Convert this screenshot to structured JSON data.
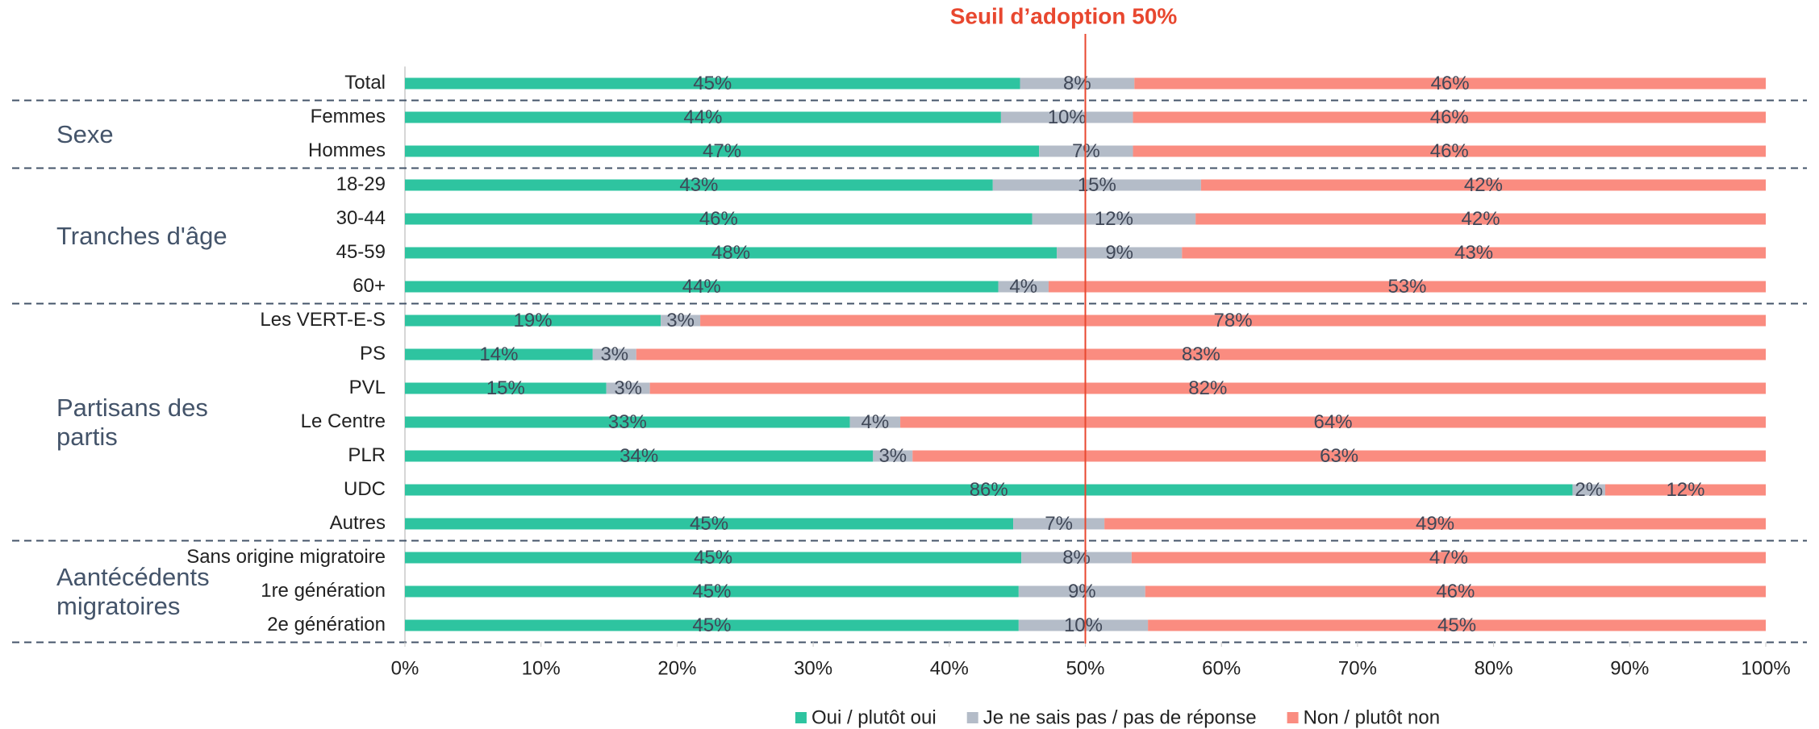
{
  "chart_data": {
    "type": "stacked_bar_horizontal",
    "threshold": {
      "label": "Seuil d’adoption 50%",
      "value": 50,
      "color": "#e8472f"
    },
    "categories": [
      "Total",
      "Femmes",
      "Hommes",
      "18-29",
      "30-44",
      "45-59",
      "60+",
      "Les VERT-E-S",
      "PS",
      "PVL",
      "Le Centre",
      "PLR",
      "UDC",
      "Autres",
      "Sans origine migratoire",
      "1re génération",
      "2e génération"
    ],
    "category_groups": [
      null,
      "Sexe",
      "Sexe",
      "Tranches d'âge",
      "Tranches d'âge",
      "Tranches d'âge",
      "Tranches d'âge",
      "Partisans des partis",
      "Partisans des partis",
      "Partisans des partis",
      "Partisans des partis",
      "Partisans des partis",
      "Partisans des partis",
      "Partisans des partis",
      "Aantécédents migratoires",
      "Aantécédents migratoires",
      "Aantécédents migratoires"
    ],
    "series": [
      {
        "name": "Oui / plutôt oui",
        "color": "#2ec4a0",
        "values": [
          45.2,
          43.8,
          46.6,
          43.2,
          46.1,
          47.9,
          43.6,
          18.8,
          13.8,
          14.8,
          32.7,
          34.4,
          85.8,
          44.7,
          45.3,
          45.1,
          45.1
        ],
        "value_labels": [
          "45%",
          "44%",
          "47%",
          "43%",
          "46%",
          "48%",
          "44%",
          "19%",
          "14%",
          "15%",
          "33%",
          "34%",
          "86%",
          "45%",
          "45%",
          "45%",
          "45%"
        ]
      },
      {
        "name": "Je ne sais pas / pas de réponse",
        "color": "#b4bcc8",
        "values": [
          8.4,
          9.7,
          6.9,
          15.3,
          12.0,
          9.2,
          3.7,
          2.9,
          3.2,
          3.2,
          3.7,
          2.9,
          2.4,
          6.7,
          8.1,
          9.3,
          9.5
        ],
        "value_labels": [
          "8%",
          "10%",
          "7%",
          "15%",
          "12%",
          "9%",
          "4%",
          "3%",
          "3%",
          "3%",
          "4%",
          "3%",
          "2%",
          "7%",
          "8%",
          "9%",
          "10%"
        ]
      },
      {
        "name": "Non / plutôt non",
        "color": "#fa8c80",
        "values": [
          46.4,
          46.5,
          46.5,
          41.5,
          41.9,
          42.9,
          52.7,
          78.3,
          83.0,
          82.0,
          63.6,
          62.7,
          11.8,
          48.6,
          46.6,
          45.6,
          45.4
        ],
        "value_labels": [
          "46%",
          "46%",
          "46%",
          "42%",
          "42%",
          "43%",
          "53%",
          "78%",
          "83%",
          "82%",
          "64%",
          "63%",
          "12%",
          "49%",
          "47%",
          "46%",
          "45%"
        ]
      }
    ],
    "xlim": [
      0,
      100
    ],
    "xticks": [
      {
        "value": 0,
        "label": "0%"
      },
      {
        "value": 10,
        "label": "10%"
      },
      {
        "value": 20,
        "label": "20%"
      },
      {
        "value": 30,
        "label": "30%"
      },
      {
        "value": 40,
        "label": "40%"
      },
      {
        "value": 50,
        "label": "50%"
      },
      {
        "value": 60,
        "label": "60%"
      },
      {
        "value": 70,
        "label": "70%"
      },
      {
        "value": 80,
        "label": "80%"
      },
      {
        "value": 90,
        "label": "90%"
      },
      {
        "value": 100,
        "label": "100%"
      }
    ],
    "legend": "bottom"
  }
}
